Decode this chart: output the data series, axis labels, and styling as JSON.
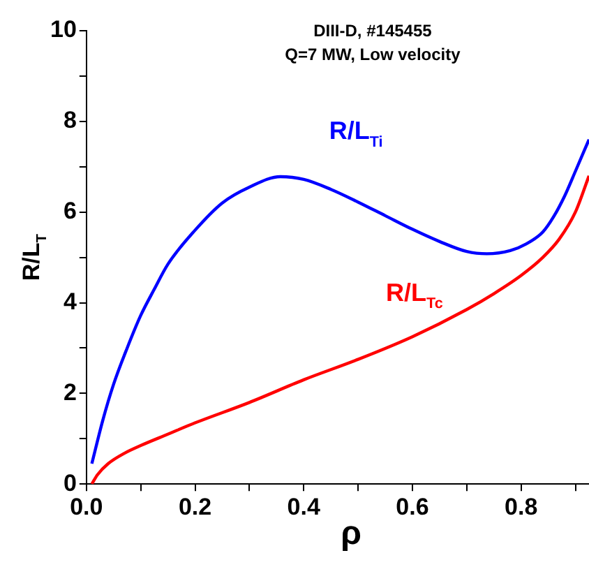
{
  "chart_data": {
    "type": "line",
    "title": "DIII-D, #145455",
    "subtitle": "Q=7 MW, Low velocity",
    "xlabel": "ρ",
    "ylabel": "R/L$_{T}$",
    "xlim": [
      0,
      0.925
    ],
    "ylim": [
      0,
      10
    ],
    "xticks": [
      {
        "value": 0,
        "label": "0.0"
      },
      {
        "value": 0.1,
        "label": null
      },
      {
        "value": 0.2,
        "label": "0.2"
      },
      {
        "value": 0.3,
        "label": null
      },
      {
        "value": 0.4,
        "label": "0.4"
      },
      {
        "value": 0.5,
        "label": null
      },
      {
        "value": 0.6,
        "label": "0.6"
      },
      {
        "value": 0.7,
        "label": null
      },
      {
        "value": 0.8,
        "label": "0.8"
      },
      {
        "value": 0.9,
        "label": null
      }
    ],
    "yticks": [
      0,
      {
        "value": 1,
        "label": null
      },
      2,
      {
        "value": 3,
        "label": null
      },
      4,
      {
        "value": 5,
        "label": null
      },
      6,
      {
        "value": 7,
        "label": null
      },
      8,
      {
        "value": 9,
        "label": null
      },
      10
    ],
    "grid": false,
    "legend": false,
    "marker": "none",
    "line_style": "solid",
    "series": [
      {
        "name": "R/L$_{Ti}$",
        "color": "#0000ff",
        "x": [
          0.01,
          0.03,
          0.05,
          0.075,
          0.1,
          0.125,
          0.15,
          0.2,
          0.25,
          0.3,
          0.357,
          0.4,
          0.45,
          0.5,
          0.55,
          0.6,
          0.65,
          0.7,
          0.737,
          0.78,
          0.81,
          0.84,
          0.86,
          0.88,
          0.9,
          0.925
        ],
        "values": [
          0.45,
          1.4,
          2.2,
          3.0,
          3.72,
          4.3,
          4.85,
          5.6,
          6.2,
          6.55,
          6.78,
          6.72,
          6.5,
          6.22,
          5.92,
          5.62,
          5.35,
          5.13,
          5.08,
          5.15,
          5.3,
          5.56,
          5.9,
          6.35,
          6.9,
          7.6
        ]
      },
      {
        "name": "R/L$_{Tc}$",
        "color": "#ff0000",
        "x": [
          0.01,
          0.02,
          0.04,
          0.07,
          0.1,
          0.15,
          0.2,
          0.3,
          0.4,
          0.5,
          0.6,
          0.7,
          0.75,
          0.8,
          0.84,
          0.87,
          0.9,
          0.925
        ],
        "values": [
          0.0,
          0.2,
          0.45,
          0.68,
          0.85,
          1.1,
          1.35,
          1.8,
          2.3,
          2.75,
          3.25,
          3.85,
          4.2,
          4.6,
          5.0,
          5.4,
          6.0,
          6.8
        ]
      }
    ]
  }
}
